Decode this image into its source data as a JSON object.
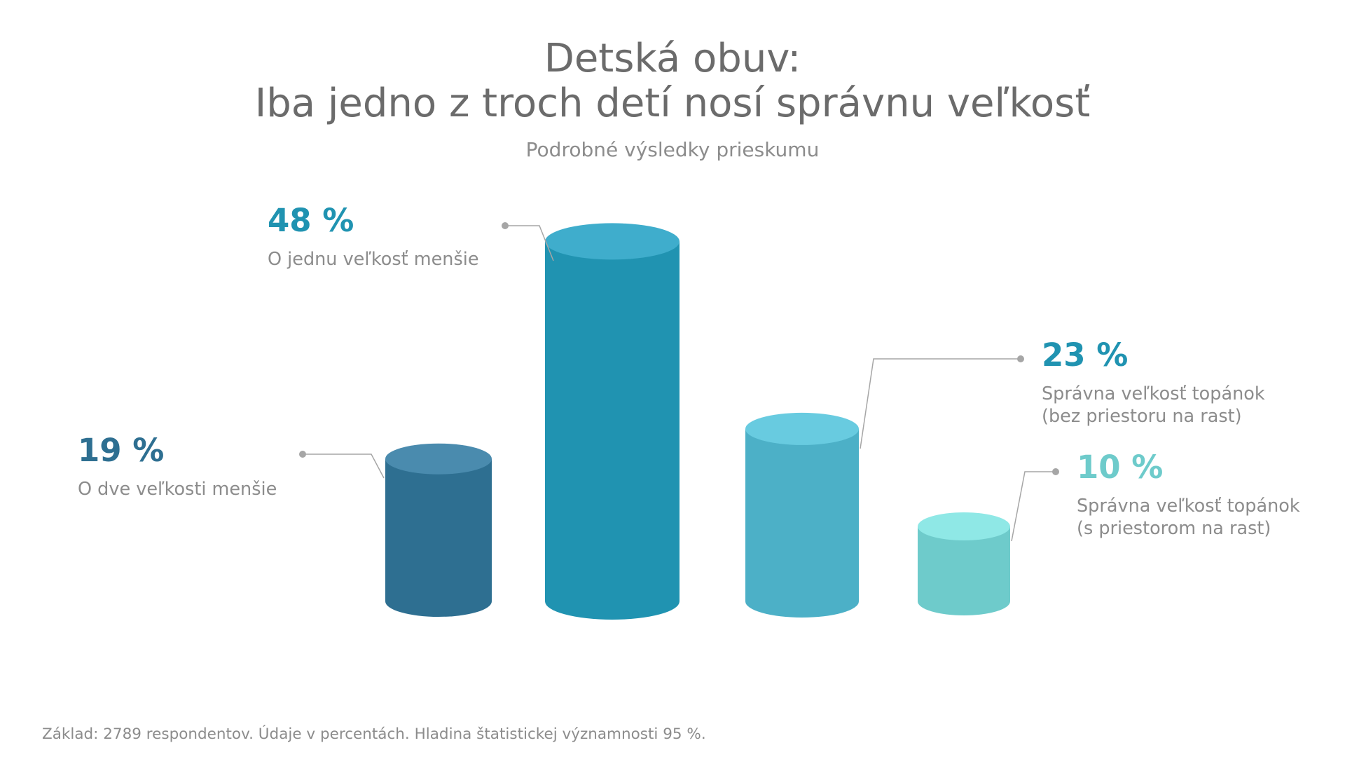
{
  "header": {
    "title_line1": "Detská obuv:",
    "title_line2": "Iba jedno z troch detí nosí správnu veľkosť",
    "subtitle": "Podrobné výsledky prieskumu"
  },
  "footnote": "Základ: 2789 respondentov. Údaje v percentách. Hladina štatistickej významnosti 95 %.",
  "chart_data": {
    "type": "bar",
    "categories": [
      "O dve veľkosti menšie",
      "O jednu veľkosť menšie",
      "Správna veľkosť topánok (bez priestoru na rast)",
      "Správna veľkosť topánok (s priestorom na rast)"
    ],
    "values": [
      19,
      48,
      23,
      10
    ],
    "data_labels": [
      "19 %",
      "48 %",
      "23 %",
      "10 %"
    ],
    "label_lines": [
      [
        "O dve veľkosti menšie"
      ],
      [
        "O jednu veľkosť menšie"
      ],
      [
        "Správna veľkosť topánok",
        "(bez priestoru na rast)"
      ],
      [
        "Správna veľkosť topánok",
        "(s priestorom na rast)"
      ]
    ],
    "colors": [
      {
        "body": "#2e6f91",
        "top": "#4a8bae",
        "text": "#2e6f91"
      },
      {
        "body": "#2093b1",
        "top": "#3fadcc",
        "text": "#2093b1"
      },
      {
        "body": "#4cb0c7",
        "top": "#68cbe0",
        "text": "#2093b1"
      },
      {
        "body": "#6ecbcb",
        "top": "#8fe8e6",
        "text": "#6ecbcb"
      }
    ],
    "bar_style": "cylinder",
    "grid": false,
    "legend": "none"
  }
}
